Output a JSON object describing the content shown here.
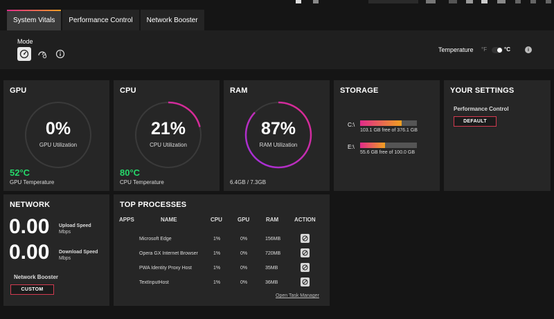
{
  "tabs": [
    {
      "label": "System Vitals",
      "active": true
    },
    {
      "label": "Performance Control",
      "active": false
    },
    {
      "label": "Network Booster",
      "active": false
    }
  ],
  "mode": {
    "label": "Mode",
    "buttons": [
      "speedometer-icon",
      "speedometer-settings-icon",
      "info-icon"
    ]
  },
  "temperature_setting": {
    "label": "Temperature",
    "unit_f": "°F",
    "unit_c": "°C",
    "selected": "°C"
  },
  "colors": {
    "accent_pink": "#e02a8a",
    "accent_orange": "#f0a020",
    "accent_purple": "#a030e0",
    "temp_green": "#25d86a",
    "button_border": "#d23a50"
  },
  "gpu": {
    "title": "GPU",
    "value": "0%",
    "label": "GPU Utilization",
    "percent": 0,
    "temp": "52°C",
    "temp_label": "GPU Temperature"
  },
  "cpu": {
    "title": "CPU",
    "value": "21%",
    "label": "CPU Utilization",
    "percent": 21,
    "temp": "80°C",
    "temp_label": "CPU Temperature"
  },
  "ram": {
    "title": "RAM",
    "value": "87%",
    "label": "RAM Utilization",
    "percent": 87,
    "usage": "6.4GB / 7.3GB"
  },
  "storage": {
    "title": "STORAGE",
    "drives": [
      {
        "letter": "C:\\",
        "free_text": "103.1 GB free of 376.1 GB",
        "used_fraction": 0.726
      },
      {
        "letter": "E:\\",
        "free_text": "55.6 GB free of 100.0 GB",
        "used_fraction": 0.444
      }
    ]
  },
  "settings": {
    "title": "YOUR SETTINGS",
    "subtitle": "Performance Control",
    "button": "DEFAULT"
  },
  "network": {
    "title": "NETWORK",
    "upload_value": "0.00",
    "upload_label": "Upload Speed",
    "upload_unit": "Mbps",
    "download_value": "0.00",
    "download_label": "Download Speed",
    "download_unit": "Mbps",
    "booster_label": "Network Booster",
    "booster_button": "CUSTOM"
  },
  "processes": {
    "title": "TOP PROCESSES",
    "headers": {
      "apps": "APPS",
      "name": "NAME",
      "cpu": "CPU",
      "gpu": "GPU",
      "ram": "RAM",
      "action": "ACTION"
    },
    "rows": [
      {
        "name": "Microsoft Edge",
        "cpu": "1%",
        "gpu": "0%",
        "ram": "156MB"
      },
      {
        "name": "Opera GX Internet Browser",
        "cpu": "1%",
        "gpu": "0%",
        "ram": "720MB"
      },
      {
        "name": "PWA Identity Proxy Host",
        "cpu": "1%",
        "gpu": "0%",
        "ram": "35MB"
      },
      {
        "name": "TextInputHost",
        "cpu": "1%",
        "gpu": "0%",
        "ram": "36MB"
      }
    ],
    "link": "Open Task Manager"
  }
}
